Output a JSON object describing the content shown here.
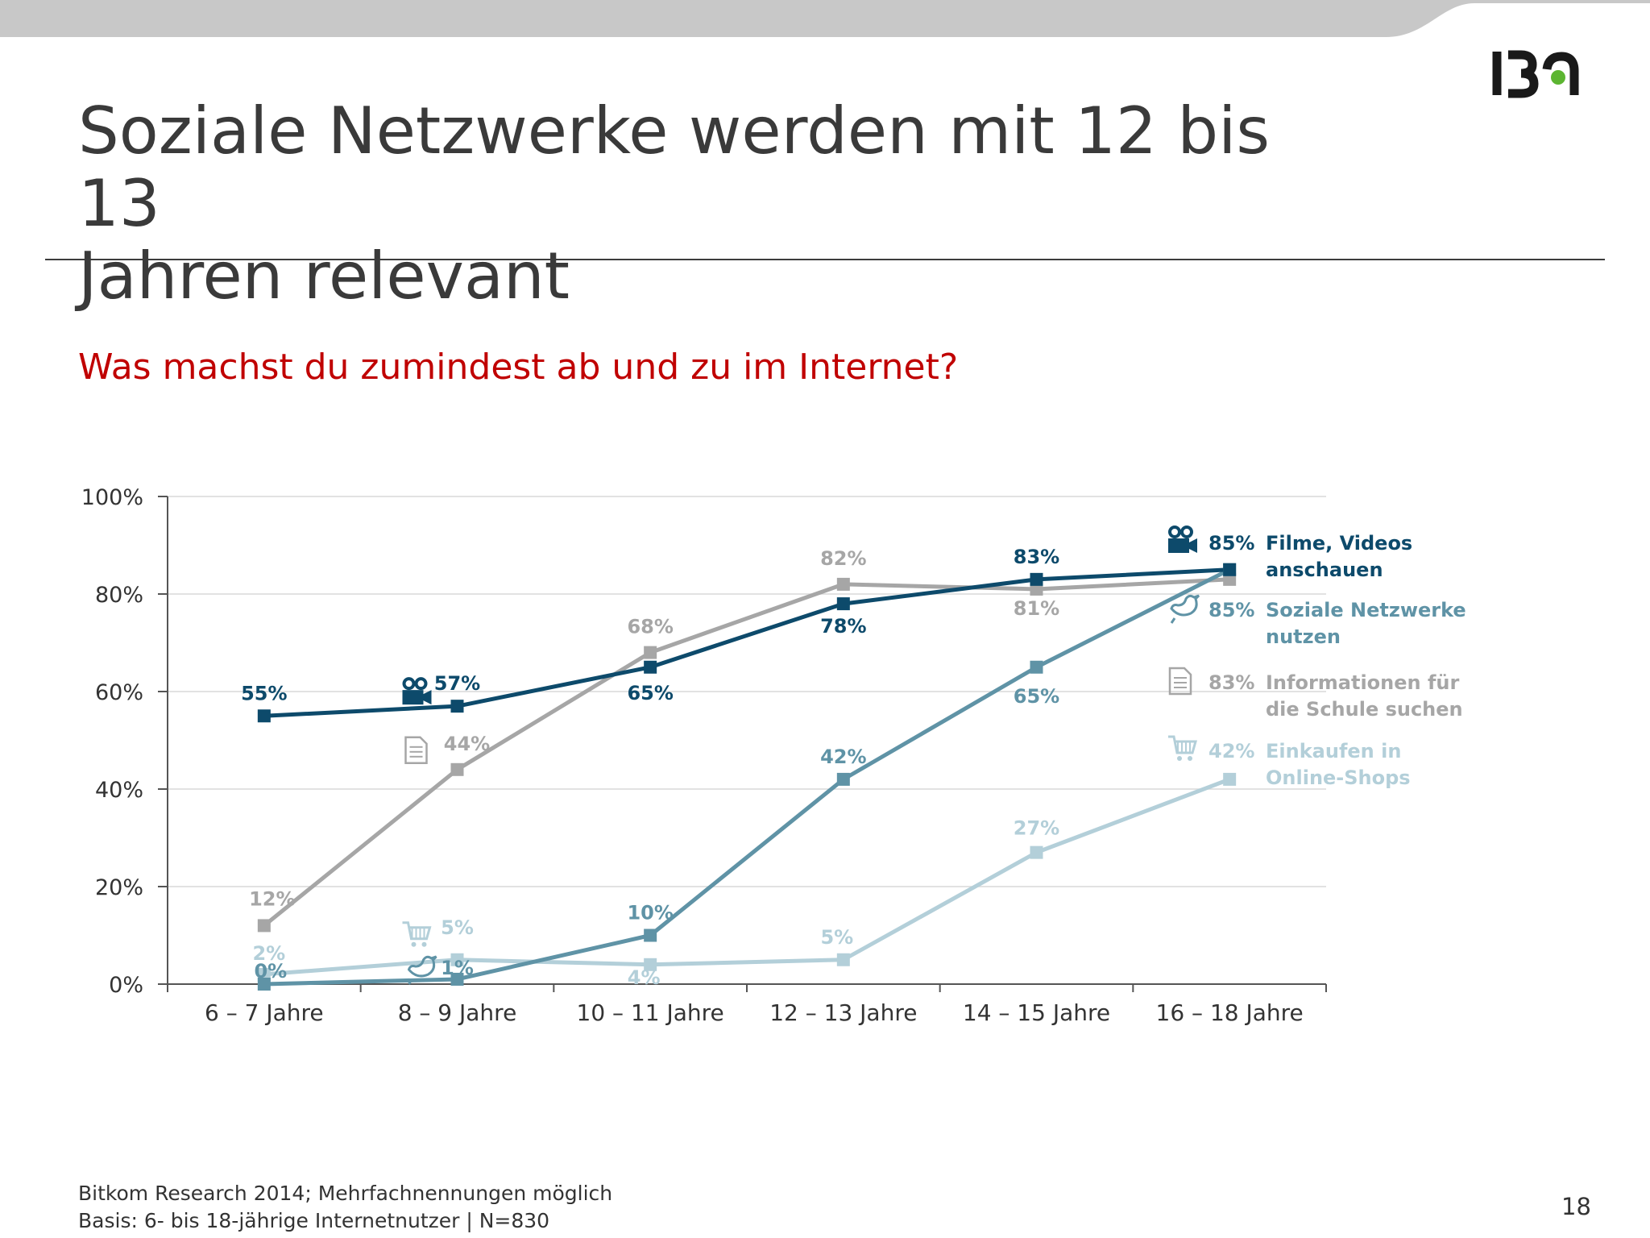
{
  "slide": {
    "title_line1": "Soziale Netzwerke werden mit 12 bis 13",
    "title_line2": "Jahren relevant",
    "subtitle": "Was machst du zumindest ab und zu im Internet?",
    "footnote_source": "Bitkom Research 2014; Mehrfachnennungen möglich",
    "footnote_basis": "Basis: 6- bis 18-jährige Internetnutzer | N=830",
    "page_number": "18",
    "logo_icon": "ibm-style-logo-icon",
    "colors": {
      "topbar": "#c8c8c8",
      "title": "#3a3a3a",
      "subtitle": "#c00000",
      "logo": "#1a1a1a",
      "logo_dot": "#5cb531"
    }
  },
  "chart_data": {
    "type": "line",
    "categories": [
      "6 – 7 Jahre",
      "8 – 9 Jahre",
      "10 – 11 Jahre",
      "12 – 13 Jahre",
      "14 – 15 Jahre",
      "16 – 18 Jahre"
    ],
    "ylim": [
      0,
      100
    ],
    "y_ticks": [
      "0%",
      "20%",
      "40%",
      "60%",
      "80%",
      "100%"
    ],
    "grid": true,
    "legend_position": "right",
    "series": [
      {
        "key": "filme",
        "name_line1": "Filme, Videos",
        "name_line2": "anschauen",
        "icon": "video-camera-icon",
        "color": "#0d4a6b",
        "values": [
          55,
          57,
          65,
          78,
          83,
          85
        ],
        "labels": [
          "55%",
          "57%",
          "65%",
          "78%",
          "83%",
          "85%"
        ]
      },
      {
        "key": "sozial",
        "name_line1": "Soziale Netzwerke",
        "name_line2": "nutzen",
        "icon": "bird-icon",
        "color": "#5f93a6",
        "values": [
          0,
          1,
          10,
          42,
          65,
          85
        ],
        "labels": [
          "0%",
          "1%",
          "10%",
          "42%",
          "65%",
          "85%"
        ]
      },
      {
        "key": "schule",
        "name_line1": "Informationen für",
        "name_line2": "die Schule suchen",
        "icon": "document-icon",
        "color": "#a6a6a6",
        "values": [
          12,
          44,
          68,
          82,
          81,
          83
        ],
        "labels": [
          "12%",
          "44%",
          "68%",
          "82%",
          "81%",
          "83%"
        ]
      },
      {
        "key": "shops",
        "name_line1": "Einkaufen in",
        "name_line2": "Online-Shops",
        "icon": "shopping-cart-icon",
        "color": "#b3cfd9",
        "values": [
          2,
          5,
          4,
          5,
          27,
          42
        ],
        "labels": [
          "2%",
          "5%",
          "4%",
          "5%",
          "27%",
          "42%"
        ]
      }
    ]
  }
}
